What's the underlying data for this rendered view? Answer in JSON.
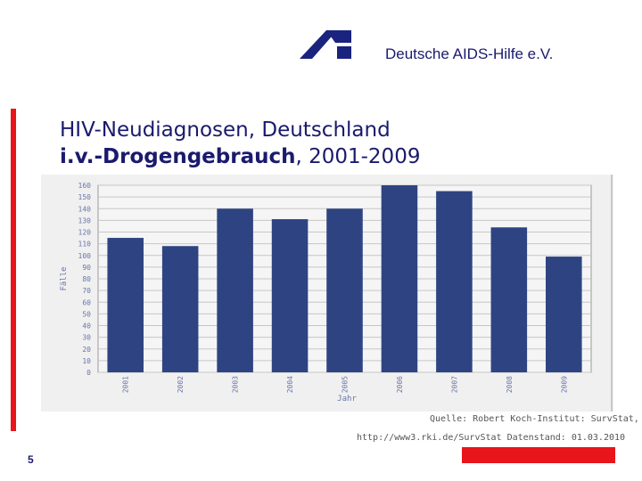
{
  "header": {
    "org_name": "Deutsche AIDS-Hilfe e.V.",
    "logo_icon": "aids-hilfe-logo-icon",
    "brand_color": "#1a237e",
    "accent_color": "#e8151b"
  },
  "slide": {
    "title_line1": "HIV-Neudiagnosen, Deutschland",
    "title_line2_bold": "i.v.-Drogengebrauch",
    "title_line2_rest": ", 2001-2009",
    "page_number": "5"
  },
  "source": {
    "line1": "Quelle: Robert Koch-Institut: SurvStat,",
    "line2": "http://www3.rki.de/SurvStat Datenstand: 01.03.2010"
  },
  "chart_data": {
    "type": "bar",
    "categories": [
      "2001",
      "2002",
      "2003",
      "2004",
      "2005",
      "2006",
      "2007",
      "2008",
      "2009"
    ],
    "values": [
      115,
      108,
      140,
      131,
      140,
      164,
      155,
      124,
      99
    ],
    "xlabel": "Jahr",
    "ylabel": "Fälle",
    "ylim": [
      0,
      160
    ],
    "yticks": [
      "0",
      "10",
      "20",
      "30",
      "40",
      "50",
      "60",
      "70",
      "80",
      "90",
      "100",
      "110",
      "120",
      "130",
      "140",
      "150",
      "160"
    ],
    "grid": true,
    "bar_color": "#2e4482",
    "plot_background": "#f2f2f2"
  }
}
